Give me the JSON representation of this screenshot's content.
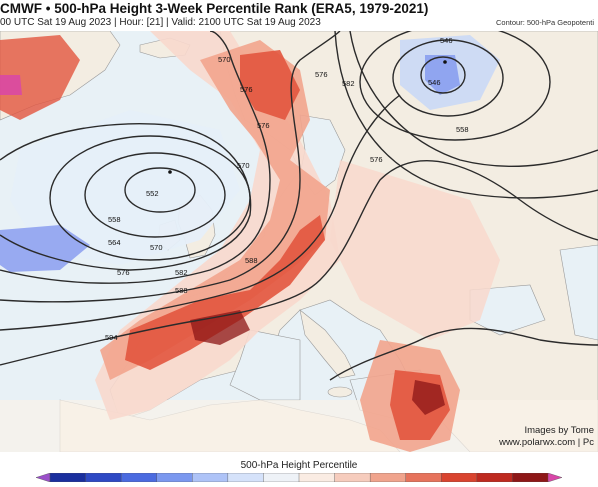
{
  "header": {
    "title": "CMWF • 500-hPa Height 3-Week Percentile Rank (ERA5, 1979-2021)",
    "subtitle": "00 UTC Sat 19 Aug 2023 | Hour: [21] | Valid: 2100 UTC Sat 19 Aug 2023",
    "contour_note": "Contour: 500-hPa Geopotenti"
  },
  "map": {
    "contour_labels": [
      "546",
      "552",
      "558",
      "564",
      "570",
      "576",
      "582",
      "588",
      "594"
    ],
    "low_center_value": "552",
    "low_inner_value": "546",
    "colors": {
      "sea": "#e8f1f6",
      "land": "#f3ede2",
      "very_low": "#8a9ef0",
      "low": "#c7d7f7",
      "slightly_low": "#e6eff9",
      "neutral": "#faf2ea",
      "slightly_high": "#f8d8cd",
      "high": "#f2a48d",
      "very_high": "#e2553e",
      "extreme": "#c12e23",
      "record": "#8c1616",
      "record_max": "#d846a8",
      "contour": "#2b2b2b"
    }
  },
  "credits": {
    "line1": "Images by Tome",
    "line2": "www.polarwx.com | Pc"
  },
  "colorbar": {
    "label": "500-hPa Height Percentile",
    "colors": [
      "#9a4fc9",
      "#1a2f9e",
      "#2e49c4",
      "#4b6be0",
      "#7b98ef",
      "#aec3f7",
      "#d5e2fa",
      "#eef2f7",
      "#faece3",
      "#f6ccbd",
      "#f0a48d",
      "#e6735c",
      "#d9442f",
      "#be2a20",
      "#8e1717",
      "#d846a8"
    ]
  }
}
